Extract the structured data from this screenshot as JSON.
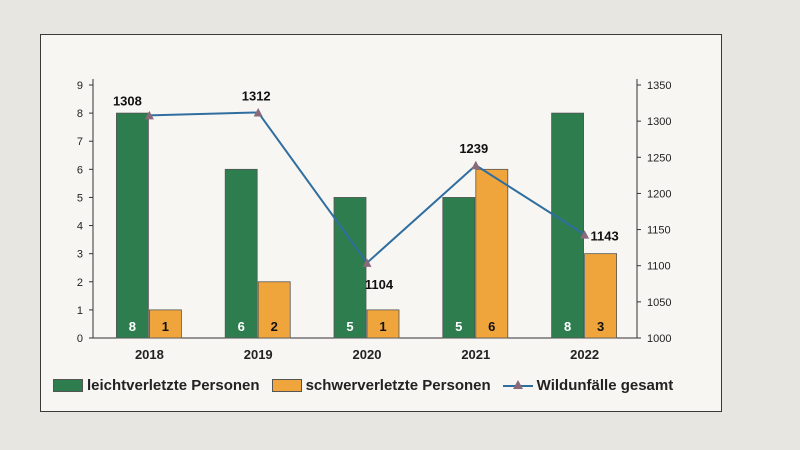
{
  "chart_data": {
    "type": "bar",
    "categories": [
      "2018",
      "2019",
      "2020",
      "2021",
      "2022"
    ],
    "series": [
      {
        "name": "leichtverletzte Personen",
        "type": "bar",
        "axis": "left",
        "values": [
          8,
          6,
          5,
          5,
          8
        ],
        "color": "#2e7d4f"
      },
      {
        "name": "schwerverletzte Personen",
        "type": "bar",
        "axis": "left",
        "values": [
          1,
          2,
          1,
          6,
          3
        ],
        "color": "#f0a53c"
      },
      {
        "name": "Wildunfälle gesamt",
        "type": "line",
        "axis": "right",
        "values": [
          1308,
          1312,
          1104,
          1239,
          1143
        ],
        "color": "#2f6e9e",
        "marker_color": "#8a6a7a"
      }
    ],
    "y_left": {
      "range": [
        0,
        9
      ],
      "ticks": [
        "0",
        "1",
        "2",
        "3",
        "4",
        "5",
        "6",
        "7",
        "8",
        "9"
      ]
    },
    "y_right": {
      "range": [
        1000,
        1350
      ],
      "ticks": [
        "1000",
        "1050",
        "1100",
        "1150",
        "1200",
        "1250",
        "1300",
        "1350"
      ]
    },
    "legend": "bottom",
    "grid": false
  }
}
